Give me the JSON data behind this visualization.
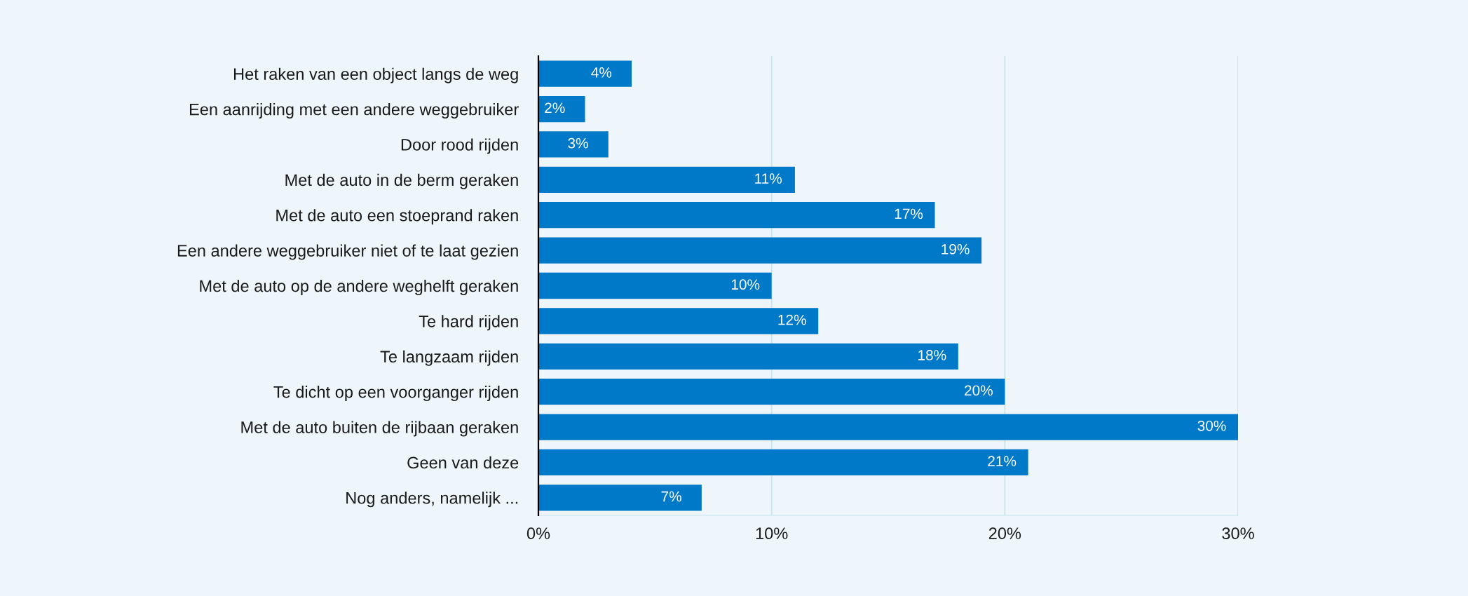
{
  "chart_data": {
    "type": "bar",
    "orientation": "horizontal",
    "categories": [
      "Het raken van een object langs de weg",
      "Een aanrijding met een andere weggebruiker",
      "Door rood rijden",
      "Met de auto in de berm geraken",
      "Met de auto een stoeprand raken",
      "Een andere weggebruiker niet of te laat gezien",
      "Met de auto op de andere weghelft geraken",
      "Te hard rijden",
      "Te langzaam rijden",
      "Te dicht op een voorganger rijden",
      "Met de auto buiten de rijbaan geraken",
      "Geen van deze",
      "Nog anders, namelijk ..."
    ],
    "values": [
      4,
      2,
      3,
      11,
      17,
      19,
      10,
      12,
      18,
      20,
      30,
      21,
      7
    ],
    "color": "#0079c8",
    "value_labels": [
      "4%",
      "2%",
      "3%",
      "11%",
      "17%",
      "19%",
      "10%",
      "12%",
      "18%",
      "20%",
      "30%",
      "21%",
      "7%"
    ],
    "xlim": [
      0,
      30
    ],
    "xticks": [
      {
        "value": 0,
        "label": "0%"
      },
      {
        "value": 10,
        "label": "10%"
      },
      {
        "value": 20,
        "label": "20%"
      },
      {
        "value": 30,
        "label": "30%"
      }
    ],
    "grid": "x",
    "legend": false
  }
}
